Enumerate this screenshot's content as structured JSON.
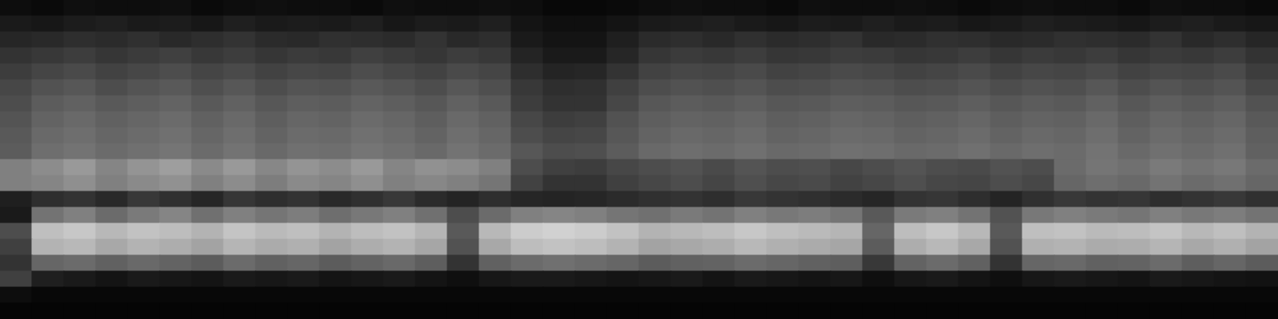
{
  "chart_data": {
    "type": "heatmap",
    "xlim": [
      0,
      40
    ],
    "ylim": [
      0,
      20
    ],
    "tick_labels": false,
    "grid": false,
    "cells": [
      [
        0.05,
        0.04,
        0.06,
        0.05,
        0.05,
        0.06,
        0.04,
        0.05,
        0.06,
        0.05,
        0.05,
        0.04,
        0.06,
        0.05,
        0.05,
        0.06,
        0.05,
        0.03,
        0.03,
        0.04,
        0.05,
        0.06,
        0.05,
        0.05,
        0.04,
        0.06,
        0.05,
        0.05,
        0.06,
        0.05,
        0.04,
        0.05,
        0.06,
        0.05,
        0.05,
        0.04,
        0.06,
        0.05,
        0.05,
        0.04
      ],
      [
        0.1,
        0.09,
        0.11,
        0.12,
        0.1,
        0.11,
        0.09,
        0.12,
        0.1,
        0.11,
        0.1,
        0.12,
        0.09,
        0.11,
        0.1,
        0.12,
        0.08,
        0.06,
        0.06,
        0.08,
        0.1,
        0.11,
        0.12,
        0.1,
        0.09,
        0.11,
        0.1,
        0.12,
        0.1,
        0.11,
        0.09,
        0.1,
        0.12,
        0.11,
        0.1,
        0.09,
        0.11,
        0.12,
        0.1,
        0.09
      ],
      [
        0.15,
        0.16,
        0.18,
        0.17,
        0.19,
        0.16,
        0.18,
        0.2,
        0.17,
        0.16,
        0.19,
        0.18,
        0.17,
        0.2,
        0.16,
        0.18,
        0.1,
        0.08,
        0.08,
        0.12,
        0.17,
        0.18,
        0.16,
        0.19,
        0.17,
        0.18,
        0.2,
        0.16,
        0.17,
        0.19,
        0.18,
        0.16,
        0.17,
        0.19,
        0.18,
        0.17,
        0.2,
        0.16,
        0.18,
        0.15
      ],
      [
        0.2,
        0.22,
        0.24,
        0.21,
        0.23,
        0.25,
        0.22,
        0.24,
        0.21,
        0.23,
        0.22,
        0.25,
        0.23,
        0.21,
        0.24,
        0.22,
        0.14,
        0.1,
        0.1,
        0.15,
        0.21,
        0.23,
        0.22,
        0.24,
        0.21,
        0.22,
        0.24,
        0.23,
        0.21,
        0.22,
        0.24,
        0.21,
        0.23,
        0.22,
        0.24,
        0.21,
        0.23,
        0.22,
        0.24,
        0.2
      ],
      [
        0.24,
        0.27,
        0.29,
        0.26,
        0.28,
        0.3,
        0.27,
        0.29,
        0.26,
        0.28,
        0.27,
        0.3,
        0.28,
        0.26,
        0.29,
        0.27,
        0.18,
        0.14,
        0.15,
        0.2,
        0.26,
        0.28,
        0.27,
        0.29,
        0.26,
        0.27,
        0.29,
        0.28,
        0.26,
        0.27,
        0.29,
        0.26,
        0.28,
        0.27,
        0.29,
        0.26,
        0.28,
        0.27,
        0.29,
        0.24
      ],
      [
        0.28,
        0.32,
        0.34,
        0.3,
        0.33,
        0.35,
        0.31,
        0.34,
        0.3,
        0.33,
        0.32,
        0.35,
        0.33,
        0.3,
        0.34,
        0.31,
        0.22,
        0.18,
        0.19,
        0.25,
        0.3,
        0.32,
        0.31,
        0.33,
        0.3,
        0.31,
        0.33,
        0.32,
        0.3,
        0.31,
        0.33,
        0.3,
        0.32,
        0.31,
        0.34,
        0.3,
        0.33,
        0.31,
        0.33,
        0.28
      ],
      [
        0.3,
        0.36,
        0.38,
        0.35,
        0.37,
        0.39,
        0.35,
        0.38,
        0.34,
        0.37,
        0.36,
        0.39,
        0.37,
        0.34,
        0.38,
        0.35,
        0.24,
        0.2,
        0.2,
        0.28,
        0.34,
        0.36,
        0.35,
        0.37,
        0.34,
        0.35,
        0.37,
        0.36,
        0.34,
        0.35,
        0.37,
        0.34,
        0.36,
        0.35,
        0.38,
        0.34,
        0.37,
        0.35,
        0.37,
        0.32
      ],
      [
        0.33,
        0.39,
        0.41,
        0.38,
        0.4,
        0.42,
        0.38,
        0.41,
        0.37,
        0.4,
        0.39,
        0.42,
        0.4,
        0.37,
        0.41,
        0.38,
        0.28,
        0.24,
        0.25,
        0.32,
        0.37,
        0.39,
        0.38,
        0.4,
        0.37,
        0.38,
        0.4,
        0.39,
        0.37,
        0.38,
        0.4,
        0.37,
        0.39,
        0.38,
        0.41,
        0.37,
        0.4,
        0.38,
        0.4,
        0.35
      ],
      [
        0.35,
        0.41,
        0.43,
        0.4,
        0.42,
        0.44,
        0.4,
        0.43,
        0.39,
        0.42,
        0.41,
        0.44,
        0.42,
        0.39,
        0.43,
        0.4,
        0.3,
        0.27,
        0.28,
        0.34,
        0.39,
        0.41,
        0.4,
        0.42,
        0.39,
        0.4,
        0.42,
        0.41,
        0.39,
        0.4,
        0.42,
        0.39,
        0.41,
        0.4,
        0.43,
        0.39,
        0.42,
        0.4,
        0.42,
        0.37
      ],
      [
        0.36,
        0.43,
        0.45,
        0.42,
        0.44,
        0.46,
        0.42,
        0.45,
        0.41,
        0.44,
        0.43,
        0.46,
        0.44,
        0.41,
        0.45,
        0.42,
        0.34,
        0.3,
        0.31,
        0.36,
        0.41,
        0.43,
        0.42,
        0.44,
        0.41,
        0.42,
        0.44,
        0.43,
        0.41,
        0.42,
        0.44,
        0.41,
        0.43,
        0.42,
        0.45,
        0.41,
        0.44,
        0.42,
        0.44,
        0.38
      ],
      [
        0.5,
        0.55,
        0.6,
        0.52,
        0.58,
        0.62,
        0.54,
        0.6,
        0.53,
        0.58,
        0.55,
        0.6,
        0.52,
        0.57,
        0.55,
        0.5,
        0.3,
        0.25,
        0.24,
        0.28,
        0.3,
        0.32,
        0.29,
        0.33,
        0.3,
        0.31,
        0.28,
        0.3,
        0.33,
        0.3,
        0.29,
        0.32,
        0.3,
        0.42,
        0.46,
        0.44,
        0.48,
        0.45,
        0.47,
        0.42
      ],
      [
        0.5,
        0.52,
        0.56,
        0.5,
        0.54,
        0.57,
        0.5,
        0.55,
        0.49,
        0.54,
        0.52,
        0.56,
        0.5,
        0.53,
        0.5,
        0.46,
        0.26,
        0.2,
        0.2,
        0.25,
        0.28,
        0.3,
        0.27,
        0.31,
        0.28,
        0.29,
        0.26,
        0.28,
        0.31,
        0.28,
        0.27,
        0.3,
        0.28,
        0.4,
        0.43,
        0.41,
        0.45,
        0.42,
        0.44,
        0.4
      ],
      [
        0.12,
        0.18,
        0.2,
        0.16,
        0.22,
        0.19,
        0.15,
        0.21,
        0.18,
        0.2,
        0.16,
        0.19,
        0.22,
        0.17,
        0.14,
        0.18,
        0.15,
        0.14,
        0.15,
        0.17,
        0.19,
        0.2,
        0.18,
        0.22,
        0.2,
        0.19,
        0.17,
        0.15,
        0.2,
        0.21,
        0.18,
        0.14,
        0.19,
        0.22,
        0.2,
        0.21,
        0.18,
        0.2,
        0.22,
        0.19
      ],
      [
        0.1,
        0.45,
        0.5,
        0.42,
        0.48,
        0.52,
        0.44,
        0.5,
        0.46,
        0.49,
        0.43,
        0.47,
        0.5,
        0.44,
        0.3,
        0.42,
        0.5,
        0.52,
        0.5,
        0.46,
        0.44,
        0.48,
        0.45,
        0.5,
        0.47,
        0.49,
        0.46,
        0.35,
        0.48,
        0.5,
        0.45,
        0.32,
        0.47,
        0.5,
        0.48,
        0.46,
        0.5,
        0.47,
        0.49,
        0.45
      ],
      [
        0.3,
        0.75,
        0.78,
        0.72,
        0.76,
        0.74,
        0.7,
        0.77,
        0.73,
        0.75,
        0.7,
        0.74,
        0.76,
        0.71,
        0.35,
        0.72,
        0.8,
        0.82,
        0.8,
        0.76,
        0.7,
        0.72,
        0.74,
        0.78,
        0.75,
        0.73,
        0.71,
        0.4,
        0.74,
        0.78,
        0.72,
        0.35,
        0.75,
        0.76,
        0.73,
        0.74,
        0.77,
        0.72,
        0.75,
        0.7
      ],
      [
        0.25,
        0.7,
        0.72,
        0.66,
        0.7,
        0.68,
        0.64,
        0.71,
        0.67,
        0.69,
        0.64,
        0.68,
        0.7,
        0.65,
        0.32,
        0.66,
        0.74,
        0.76,
        0.74,
        0.7,
        0.64,
        0.66,
        0.68,
        0.72,
        0.69,
        0.67,
        0.65,
        0.36,
        0.68,
        0.72,
        0.66,
        0.32,
        0.69,
        0.7,
        0.67,
        0.68,
        0.71,
        0.66,
        0.69,
        0.64
      ],
      [
        0.2,
        0.4,
        0.42,
        0.38,
        0.41,
        0.39,
        0.36,
        0.42,
        0.38,
        0.4,
        0.36,
        0.39,
        0.41,
        0.37,
        0.2,
        0.38,
        0.42,
        0.44,
        0.42,
        0.4,
        0.36,
        0.38,
        0.39,
        0.42,
        0.4,
        0.38,
        0.37,
        0.22,
        0.39,
        0.42,
        0.38,
        0.2,
        0.4,
        0.41,
        0.38,
        0.39,
        0.42,
        0.37,
        0.4,
        0.36
      ],
      [
        0.25,
        0.12,
        0.1,
        0.08,
        0.1,
        0.09,
        0.08,
        0.1,
        0.09,
        0.1,
        0.08,
        0.09,
        0.1,
        0.08,
        0.06,
        0.09,
        0.1,
        0.1,
        0.09,
        0.08,
        0.09,
        0.1,
        0.08,
        0.1,
        0.09,
        0.08,
        0.09,
        0.06,
        0.09,
        0.1,
        0.08,
        0.06,
        0.09,
        0.1,
        0.09,
        0.08,
        0.1,
        0.09,
        0.08,
        0.07
      ],
      [
        0.05,
        0.03,
        0.03,
        0.03,
        0.03,
        0.03,
        0.03,
        0.03,
        0.03,
        0.03,
        0.03,
        0.03,
        0.03,
        0.03,
        0.03,
        0.03,
        0.03,
        0.03,
        0.03,
        0.03,
        0.03,
        0.03,
        0.03,
        0.03,
        0.03,
        0.03,
        0.03,
        0.03,
        0.03,
        0.03,
        0.03,
        0.03,
        0.03,
        0.03,
        0.03,
        0.03,
        0.03,
        0.03,
        0.03,
        0.03
      ],
      [
        0.02,
        0.02,
        0.02,
        0.02,
        0.02,
        0.02,
        0.02,
        0.02,
        0.02,
        0.02,
        0.02,
        0.02,
        0.02,
        0.02,
        0.02,
        0.02,
        0.02,
        0.02,
        0.02,
        0.02,
        0.02,
        0.02,
        0.02,
        0.02,
        0.02,
        0.02,
        0.02,
        0.02,
        0.02,
        0.02,
        0.02,
        0.02,
        0.02,
        0.02,
        0.02,
        0.02,
        0.02,
        0.02,
        0.02,
        0.02
      ]
    ]
  }
}
